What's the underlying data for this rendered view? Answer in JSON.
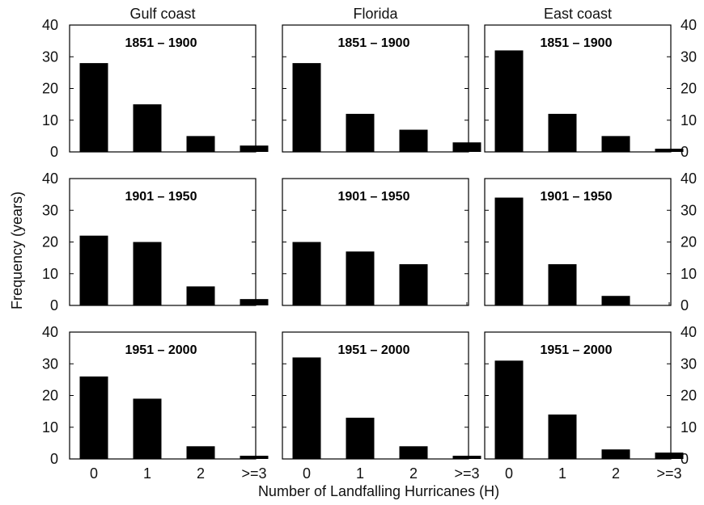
{
  "chart_data": {
    "type": "bar",
    "layout": "3x3 grid of small multiples",
    "column_titles": [
      "Gulf coast",
      "Florida",
      "East coast"
    ],
    "row_titles": [
      "1851 – 1900",
      "1901 – 1950",
      "1951 – 2000"
    ],
    "categories": [
      "0",
      "1",
      "2",
      ">=3"
    ],
    "xlabel": "Number of Landfalling Hurricanes (H)",
    "ylabel": "Frequency (years)",
    "ylim": [
      0,
      40
    ],
    "yticks": [
      "0",
      "10",
      "20",
      "30",
      "40"
    ],
    "bar_color": "#000000",
    "grid": false,
    "panels": [
      {
        "region": "Gulf coast",
        "period": "1851 – 1900",
        "values": [
          28,
          15,
          5,
          2
        ]
      },
      {
        "region": "Florida",
        "period": "1851 – 1900",
        "values": [
          28,
          12,
          7,
          3
        ]
      },
      {
        "region": "East coast",
        "period": "1851 – 1900",
        "values": [
          32,
          12,
          5,
          1
        ]
      },
      {
        "region": "Gulf coast",
        "period": "1901 – 1950",
        "values": [
          22,
          20,
          6,
          2
        ]
      },
      {
        "region": "Florida",
        "period": "1901 – 1950",
        "values": [
          20,
          17,
          13,
          0
        ]
      },
      {
        "region": "East coast",
        "period": "1901 – 1950",
        "values": [
          34,
          13,
          3,
          0
        ]
      },
      {
        "region": "Gulf coast",
        "period": "1951 – 2000",
        "values": [
          26,
          19,
          4,
          1
        ]
      },
      {
        "region": "Florida",
        "period": "1951 – 2000",
        "values": [
          32,
          13,
          4,
          1
        ]
      },
      {
        "region": "East coast",
        "period": "1951 – 2000",
        "values": [
          31,
          14,
          3,
          2
        ]
      }
    ]
  }
}
